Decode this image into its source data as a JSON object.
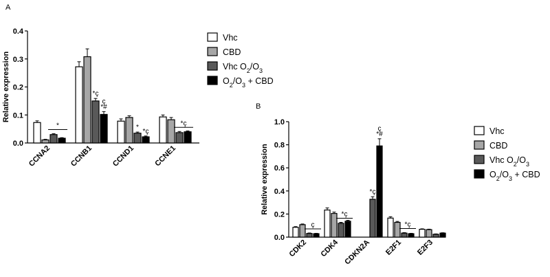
{
  "figure": {
    "panels": [
      "A",
      "B"
    ]
  },
  "chart_data": [
    {
      "panel": "A",
      "type": "bar",
      "title": "",
      "xlabel": "",
      "ylabel": "Relative expression",
      "ylim": [
        0,
        0.4
      ],
      "yticks": [
        "0.0",
        "0.1",
        "0.2",
        "0.3",
        "0.4"
      ],
      "ytick_values": [
        0,
        0.1,
        0.2,
        0.3,
        0.4
      ],
      "categories": [
        "CCNA2",
        "CCNB1",
        "CCND1",
        "CCNE1"
      ],
      "series": [
        {
          "name": "Vhc",
          "legend_main": "Vhc",
          "legend_sub": "",
          "legend_tail": "",
          "color": "#ffffff",
          "values": [
            0.073,
            0.272,
            0.078,
            0.093
          ],
          "errors": [
            0.006,
            0.018,
            0.008,
            0.007
          ]
        },
        {
          "name": "CBD",
          "legend_main": "CBD",
          "legend_sub": "",
          "legend_tail": "",
          "color": "#a6a6a6",
          "values": [
            0.011,
            0.308,
            0.091,
            0.083
          ],
          "errors": [
            0.002,
            0.028,
            0.006,
            0.008
          ]
        },
        {
          "name": "Vhc O2/O3",
          "legend_main": "Vhc O",
          "legend_sub": "2",
          "legend_tail": "/O3",
          "color": "#595959",
          "values": [
            0.03,
            0.15,
            0.035,
            0.037
          ],
          "errors": [
            0.003,
            0.009,
            0.004,
            0.004
          ]
        },
        {
          "name": "O2/O3 + CBD",
          "legend_main": "O",
          "legend_sub": "2",
          "legend_tail": "/O3 + CBD",
          "color": "#000000",
          "values": [
            0.017,
            0.102,
            0.022,
            0.04
          ],
          "errors": [
            0.002,
            0.01,
            0.003,
            0.003
          ]
        }
      ],
      "annotations": [
        {
          "category": 0,
          "series": 2,
          "text": "*",
          "line": true
        },
        {
          "category": 1,
          "series": 2,
          "text": "*ç",
          "line": false
        },
        {
          "category": 1,
          "series": 3,
          "text": "ç",
          "text2": "*#",
          "line": false
        },
        {
          "category": 2,
          "series": 2,
          "text": "*",
          "line": false
        },
        {
          "category": 2,
          "series": 3,
          "text": "*ç",
          "line": false
        },
        {
          "category": 3,
          "series": 2,
          "text": "*ç",
          "line": true
        }
      ]
    },
    {
      "panel": "B",
      "type": "bar",
      "title": "",
      "xlabel": "",
      "ylabel": "Relative expression",
      "ylim": [
        0,
        1.0
      ],
      "yticks": [
        "0.0",
        "0.2",
        "0.4",
        "0.6",
        "0.8",
        "1.0"
      ],
      "ytick_values": [
        0,
        0.2,
        0.4,
        0.6,
        0.8,
        1.0
      ],
      "categories": [
        "CDK2",
        "CDK4",
        "CDKN2A",
        "E2F1",
        "E2F3"
      ],
      "series": [
        {
          "name": "Vhc",
          "legend_main": "Vhc",
          "legend_sub": "",
          "legend_tail": "",
          "color": "#ffffff",
          "values": [
            0.085,
            0.235,
            0.0,
            0.165,
            0.068
          ],
          "errors": [
            0.006,
            0.018,
            0.0,
            0.012,
            0.004
          ]
        },
        {
          "name": "CBD",
          "legend_main": "CBD",
          "legend_sub": "",
          "legend_tail": "",
          "color": "#a6a6a6",
          "values": [
            0.108,
            0.205,
            0.0,
            0.128,
            0.065
          ],
          "errors": [
            0.006,
            0.012,
            0.0,
            0.008,
            0.004
          ]
        },
        {
          "name": "Vhc O2/O3",
          "legend_main": "Vhc O",
          "legend_sub": "2",
          "legend_tail": "/O3",
          "color": "#595959",
          "values": [
            0.032,
            0.12,
            0.328,
            0.035,
            0.025
          ],
          "errors": [
            0.004,
            0.008,
            0.022,
            0.004,
            0.003
          ]
        },
        {
          "name": "O2/O3 + CBD",
          "legend_main": "O",
          "legend_sub": "2",
          "legend_tail": "/O3 + CBD",
          "color": "#000000",
          "values": [
            0.03,
            0.138,
            0.79,
            0.03,
            0.035
          ],
          "errors": [
            0.003,
            0.008,
            0.062,
            0.003,
            0.003
          ]
        }
      ],
      "annotations": [
        {
          "category": 0,
          "series": 2,
          "text": "ç",
          "line": true
        },
        {
          "category": 1,
          "series": 2,
          "text": "*ç",
          "line": true
        },
        {
          "category": 2,
          "series": 2,
          "text": "*ç",
          "line": false
        },
        {
          "category": 2,
          "series": 3,
          "text": "ç",
          "text2": "*#",
          "line": false
        },
        {
          "category": 3,
          "series": 2,
          "text": "*ç",
          "line": true
        }
      ]
    }
  ]
}
